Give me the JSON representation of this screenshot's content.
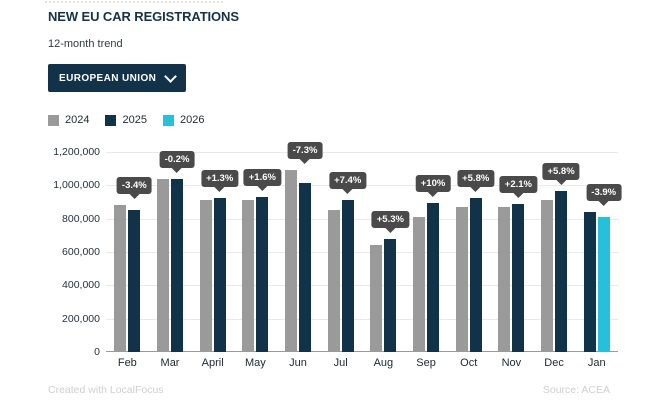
{
  "header": {
    "title": "NEW EU CAR REGISTRATIONS",
    "subtitle": "12-month trend"
  },
  "dropdown": {
    "label": "EUROPEAN UNION",
    "icon": "chevron-down-icon"
  },
  "legend": {
    "items": [
      {
        "label": "2024",
        "color": "#9a9a9a"
      },
      {
        "label": "2025",
        "color": "#103349"
      },
      {
        "label": "2026",
        "color": "#25c1dc"
      }
    ]
  },
  "chart_data": {
    "type": "bar",
    "title": "NEW EU CAR REGISTRATIONS",
    "subtitle": "12-month trend",
    "categories": [
      "Feb",
      "Mar",
      "April",
      "May",
      "Jun",
      "Jul",
      "Aug",
      "Sep",
      "Oct",
      "Nov",
      "Dec",
      "Jan"
    ],
    "series": [
      {
        "name": "2024",
        "color": "#9a9a9a",
        "values": [
          885000,
          1040000,
          915000,
          913000,
          1095000,
          852000,
          643000,
          812000,
          872000,
          873000,
          912000,
          null
        ]
      },
      {
        "name": "2025",
        "color": "#103349",
        "values": [
          855000,
          1038000,
          927000,
          928000,
          1015000,
          915000,
          677000,
          893000,
          923000,
          891000,
          965000,
          842000
        ]
      },
      {
        "name": "2026",
        "color": "#25c1dc",
        "values": [
          null,
          null,
          null,
          null,
          null,
          null,
          null,
          null,
          null,
          null,
          null,
          809000
        ]
      }
    ],
    "change_labels": [
      "-3.4%",
      "-0.2%",
      "+1.3%",
      "+1.6%",
      "-7.3%",
      "+7.4%",
      "+5.3%",
      "+10%",
      "+5.8%",
      "+2.1%",
      "+5.8%",
      "-3.9%"
    ],
    "ylim": [
      0,
      1200000
    ],
    "yticks": [
      0,
      200000,
      400000,
      600000,
      800000,
      1000000,
      1200000
    ],
    "grid": true,
    "legend_position": "top",
    "badge_color": "#4a4a4a"
  },
  "footer": {
    "credit": "Created with LocalFocus",
    "source": "Source: ACEA"
  }
}
